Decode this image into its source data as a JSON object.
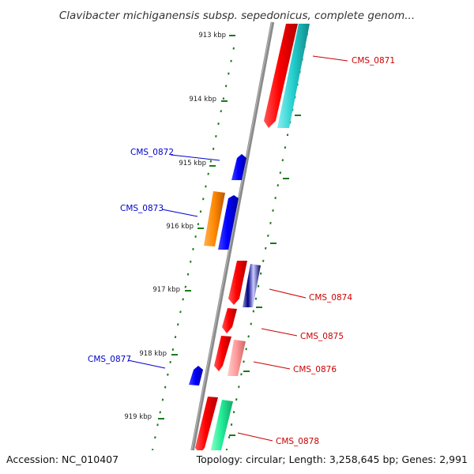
{
  "title": "Clavibacter michiganensis subsp. sepedonicus, complete genom...",
  "footer": {
    "accession": "Accession: NC_010407",
    "summary": "Topology: circular; Length: 3,258,645 bp; Genes: 2,991"
  },
  "ticks": [
    {
      "label": "913 kbp"
    },
    {
      "label": "914 kbp"
    },
    {
      "label": "915 kbp"
    },
    {
      "label": "916 kbp"
    },
    {
      "label": "917 kbp"
    },
    {
      "label": "918 kbp"
    },
    {
      "label": "919 kbp"
    }
  ],
  "genes": [
    {
      "label": "CMS_0871",
      "color": "#cc0000"
    },
    {
      "label": "CMS_0872",
      "color": "#0000cc"
    },
    {
      "label": "CMS_0873",
      "color": "#0000cc"
    },
    {
      "label": "CMS_0874",
      "color": "#cc0000"
    },
    {
      "label": "CMS_0875",
      "color": "#cc0000"
    },
    {
      "label": "CMS_0876",
      "color": "#cc0000"
    },
    {
      "label": "CMS_0877",
      "color": "#0000cc"
    },
    {
      "label": "CMS_0878",
      "color": "#cc0000"
    }
  ],
  "colors": {
    "backbone": "#8a8a8a",
    "tick_marks": "#1a7a1a",
    "forward_cds": "#ff0000",
    "reverse_cds": "#0000ff",
    "cyan_feature": "#22cccc",
    "orange_feature": "#ff8800",
    "navy_feature": "#000080",
    "pink_feature": "#ff9999",
    "green_feature": "#22ee99"
  }
}
